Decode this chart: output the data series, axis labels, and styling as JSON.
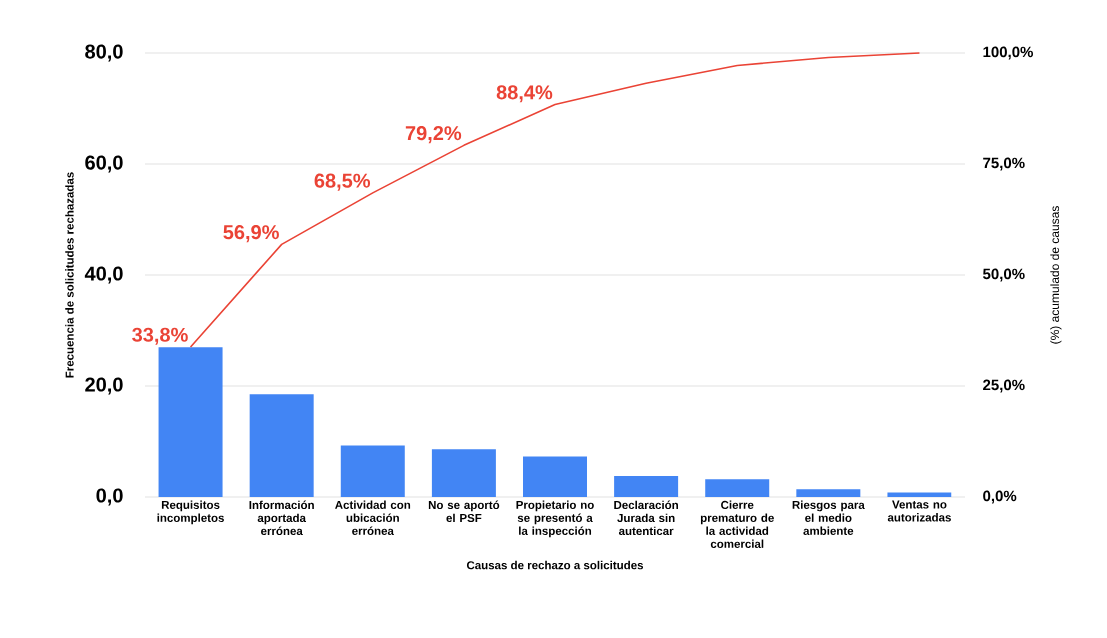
{
  "chart_data": {
    "type": "bar",
    "xlabel": "Causas de rechazo a solicitudes",
    "ylabel": "Frecuencia de solicitudes rechazadas",
    "y2label": "(%) acumulado de causas",
    "categories": [
      "Requisitos incompletos",
      "Información aportada errónea",
      "Actividad con ubicación errónea",
      "No se aportó el PSF",
      "Propietario no se presentó a la inspección",
      "Declaración Jurada sin autenticar",
      "Cierre prematuro de la actividad comercial",
      "Riesgos para el medio ambiente",
      "Ventas no autorizadas"
    ],
    "series": [
      {
        "color": "#4285f4",
        "values": [
          27.0,
          18.5,
          9.3,
          8.6,
          7.3,
          3.8,
          3.2,
          1.4,
          0.8
        ]
      },
      {
        "type": "line",
        "axis": "y2",
        "color": "#ea4335",
        "values": [
          33.8,
          56.9,
          68.5,
          79.2,
          88.4,
          93.2,
          97.2,
          99.0,
          100.0
        ],
        "value_labels": [
          "33,8%",
          "56,9%",
          "68,5%",
          "79,2%",
          "88,4%",
          null,
          null,
          null,
          null
        ]
      }
    ],
    "ylim": [
      0,
      80
    ],
    "yticks": [
      {
        "value": 0,
        "label": "0,0"
      },
      {
        "value": 20,
        "label": "20,0"
      },
      {
        "value": 40,
        "label": "40,0"
      },
      {
        "value": 60,
        "label": "60,0"
      },
      {
        "value": 80,
        "label": "80,0"
      }
    ],
    "y2lim": [
      0,
      100
    ],
    "y2ticks": [
      {
        "value": 0,
        "label": "0,0%"
      },
      {
        "value": 25,
        "label": "25,0%"
      },
      {
        "value": 50,
        "label": "50,0%"
      },
      {
        "value": 75,
        "label": "75,0%"
      },
      {
        "value": 100,
        "label": "100,0%"
      }
    ],
    "grid": "y"
  }
}
